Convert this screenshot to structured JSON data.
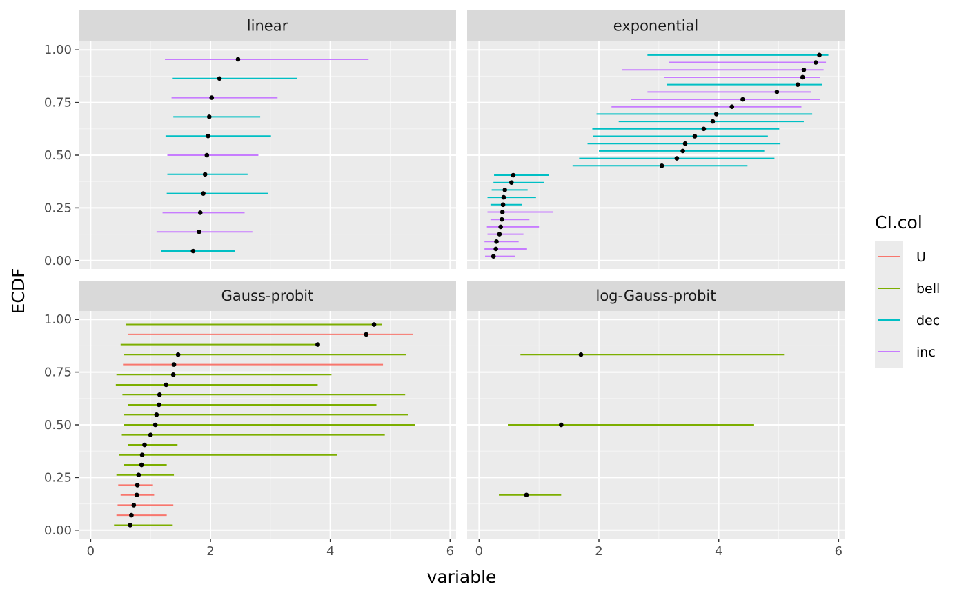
{
  "chart_data": {
    "type": "faceted-interval",
    "xlabel": "variable",
    "ylabel": "ECDF",
    "xlim": [
      -0.2,
      6.1
    ],
    "ylim": [
      -0.04,
      1.04
    ],
    "xticks": [
      0,
      2,
      4,
      6
    ],
    "yticks": [
      0,
      0.25,
      0.5,
      0.75,
      1
    ],
    "ytick_labels": [
      "0.00",
      "0.25",
      "0.50",
      "0.75",
      "1.00"
    ],
    "grid": true,
    "legend": {
      "title": "CI.col",
      "placement": "right",
      "entries": [
        {
          "key": "U",
          "label": "U",
          "color": "#F8766D"
        },
        {
          "key": "bell",
          "label": "bell",
          "color": "#7CAE00"
        },
        {
          "key": "dec",
          "label": "dec",
          "color": "#00BFC4"
        },
        {
          "key": "inc",
          "label": "inc",
          "color": "#C77CFF"
        }
      ]
    },
    "point_color": "#000000",
    "panels": [
      {
        "title": "linear",
        "intervals": [
          {
            "y": 0.045,
            "x": 1.71,
            "lo": 1.18,
            "hi": 2.41,
            "col": "dec"
          },
          {
            "y": 0.136,
            "x": 1.81,
            "lo": 1.1,
            "hi": 2.7,
            "col": "inc"
          },
          {
            "y": 0.227,
            "x": 1.83,
            "lo": 1.2,
            "hi": 2.57,
            "col": "inc"
          },
          {
            "y": 0.318,
            "x": 1.88,
            "lo": 1.27,
            "hi": 2.96,
            "col": "dec"
          },
          {
            "y": 0.409,
            "x": 1.91,
            "lo": 1.28,
            "hi": 2.62,
            "col": "dec"
          },
          {
            "y": 0.5,
            "x": 1.94,
            "lo": 1.28,
            "hi": 2.8,
            "col": "inc"
          },
          {
            "y": 0.591,
            "x": 1.96,
            "lo": 1.25,
            "hi": 3.01,
            "col": "dec"
          },
          {
            "y": 0.682,
            "x": 1.98,
            "lo": 1.38,
            "hi": 2.83,
            "col": "dec"
          },
          {
            "y": 0.773,
            "x": 2.02,
            "lo": 1.35,
            "hi": 3.12,
            "col": "inc"
          },
          {
            "y": 0.864,
            "x": 2.15,
            "lo": 1.37,
            "hi": 3.45,
            "col": "dec"
          },
          {
            "y": 0.955,
            "x": 2.46,
            "lo": 1.24,
            "hi": 4.64,
            "col": "inc"
          }
        ]
      },
      {
        "title": "exponential",
        "intervals": [
          {
            "y": 0.02,
            "x": 0.24,
            "lo": 0.1,
            "hi": 0.6,
            "col": "inc"
          },
          {
            "y": 0.055,
            "x": 0.28,
            "lo": 0.09,
            "hi": 0.8,
            "col": "inc"
          },
          {
            "y": 0.09,
            "x": 0.29,
            "lo": 0.09,
            "hi": 0.66,
            "col": "inc"
          },
          {
            "y": 0.125,
            "x": 0.34,
            "lo": 0.14,
            "hi": 0.74,
            "col": "inc"
          },
          {
            "y": 0.16,
            "x": 0.36,
            "lo": 0.13,
            "hi": 1.0,
            "col": "inc"
          },
          {
            "y": 0.195,
            "x": 0.38,
            "lo": 0.19,
            "hi": 0.84,
            "col": "inc"
          },
          {
            "y": 0.23,
            "x": 0.39,
            "lo": 0.14,
            "hi": 1.24,
            "col": "inc"
          },
          {
            "y": 0.265,
            "x": 0.4,
            "lo": 0.19,
            "hi": 0.72,
            "col": "dec"
          },
          {
            "y": 0.3,
            "x": 0.41,
            "lo": 0.14,
            "hi": 0.95,
            "col": "dec"
          },
          {
            "y": 0.335,
            "x": 0.43,
            "lo": 0.21,
            "hi": 0.81,
            "col": "dec"
          },
          {
            "y": 0.37,
            "x": 0.54,
            "lo": 0.24,
            "hi": 1.08,
            "col": "dec"
          },
          {
            "y": 0.405,
            "x": 0.57,
            "lo": 0.25,
            "hi": 1.17,
            "col": "dec"
          },
          {
            "y": 0.45,
            "x": 3.05,
            "lo": 1.56,
            "hi": 4.48,
            "col": "dec"
          },
          {
            "y": 0.485,
            "x": 3.3,
            "lo": 1.67,
            "hi": 4.93,
            "col": "dec"
          },
          {
            "y": 0.52,
            "x": 3.4,
            "lo": 2.0,
            "hi": 4.76,
            "col": "dec"
          },
          {
            "y": 0.555,
            "x": 3.44,
            "lo": 1.81,
            "hi": 5.03,
            "col": "dec"
          },
          {
            "y": 0.59,
            "x": 3.6,
            "lo": 1.9,
            "hi": 4.82,
            "col": "dec"
          },
          {
            "y": 0.625,
            "x": 3.75,
            "lo": 1.89,
            "hi": 5.01,
            "col": "dec"
          },
          {
            "y": 0.66,
            "x": 3.9,
            "lo": 2.33,
            "hi": 5.42,
            "col": "dec"
          },
          {
            "y": 0.695,
            "x": 3.96,
            "lo": 1.96,
            "hi": 5.56,
            "col": "dec"
          },
          {
            "y": 0.73,
            "x": 4.22,
            "lo": 2.21,
            "hi": 5.38,
            "col": "inc"
          },
          {
            "y": 0.765,
            "x": 4.4,
            "lo": 2.54,
            "hi": 5.69,
            "col": "inc"
          },
          {
            "y": 0.8,
            "x": 4.97,
            "lo": 2.81,
            "hi": 5.54,
            "col": "inc"
          },
          {
            "y": 0.835,
            "x": 5.32,
            "lo": 3.13,
            "hi": 5.73,
            "col": "dec"
          },
          {
            "y": 0.87,
            "x": 5.4,
            "lo": 3.09,
            "hi": 5.69,
            "col": "inc"
          },
          {
            "y": 0.905,
            "x": 5.42,
            "lo": 2.39,
            "hi": 5.75,
            "col": "inc"
          },
          {
            "y": 0.94,
            "x": 5.62,
            "lo": 3.17,
            "hi": 5.79,
            "col": "inc"
          },
          {
            "y": 0.975,
            "x": 5.68,
            "lo": 2.81,
            "hi": 5.83,
            "col": "dec"
          }
        ]
      },
      {
        "title": "Gauss-probit",
        "intervals": [
          {
            "y": 0.024,
            "x": 0.66,
            "lo": 0.39,
            "hi": 1.37,
            "col": "bell"
          },
          {
            "y": 0.071,
            "x": 0.68,
            "lo": 0.43,
            "hi": 1.27,
            "col": "U"
          },
          {
            "y": 0.119,
            "x": 0.72,
            "lo": 0.45,
            "hi": 1.38,
            "col": "U"
          },
          {
            "y": 0.167,
            "x": 0.77,
            "lo": 0.5,
            "hi": 1.06,
            "col": "U"
          },
          {
            "y": 0.214,
            "x": 0.78,
            "lo": 0.46,
            "hi": 1.04,
            "col": "U"
          },
          {
            "y": 0.262,
            "x": 0.8,
            "lo": 0.43,
            "hi": 1.39,
            "col": "bell"
          },
          {
            "y": 0.31,
            "x": 0.85,
            "lo": 0.56,
            "hi": 1.27,
            "col": "bell"
          },
          {
            "y": 0.357,
            "x": 0.86,
            "lo": 0.47,
            "hi": 4.11,
            "col": "bell"
          },
          {
            "y": 0.405,
            "x": 0.9,
            "lo": 0.62,
            "hi": 1.45,
            "col": "bell"
          },
          {
            "y": 0.452,
            "x": 1.0,
            "lo": 0.52,
            "hi": 4.91,
            "col": "bell"
          },
          {
            "y": 0.5,
            "x": 1.08,
            "lo": 0.56,
            "hi": 5.42,
            "col": "bell"
          },
          {
            "y": 0.548,
            "x": 1.1,
            "lo": 0.55,
            "hi": 5.3,
            "col": "bell"
          },
          {
            "y": 0.595,
            "x": 1.14,
            "lo": 0.62,
            "hi": 4.77,
            "col": "bell"
          },
          {
            "y": 0.643,
            "x": 1.15,
            "lo": 0.53,
            "hi": 5.25,
            "col": "bell"
          },
          {
            "y": 0.69,
            "x": 1.26,
            "lo": 0.42,
            "hi": 3.79,
            "col": "bell"
          },
          {
            "y": 0.738,
            "x": 1.38,
            "lo": 0.43,
            "hi": 4.02,
            "col": "bell"
          },
          {
            "y": 0.786,
            "x": 1.39,
            "lo": 0.54,
            "hi": 4.88,
            "col": "U"
          },
          {
            "y": 0.833,
            "x": 1.46,
            "lo": 0.56,
            "hi": 5.26,
            "col": "bell"
          },
          {
            "y": 0.881,
            "x": 3.79,
            "lo": 0.5,
            "hi": 3.83,
            "col": "bell"
          },
          {
            "y": 0.929,
            "x": 4.6,
            "lo": 0.62,
            "hi": 5.38,
            "col": "U"
          },
          {
            "y": 0.976,
            "x": 4.73,
            "lo": 0.59,
            "hi": 4.86,
            "col": "bell"
          }
        ]
      },
      {
        "title": "log-Gauss-probit",
        "intervals": [
          {
            "y": 0.167,
            "x": 0.79,
            "lo": 0.33,
            "hi": 1.37,
            "col": "bell"
          },
          {
            "y": 0.5,
            "x": 1.37,
            "lo": 0.48,
            "hi": 4.59,
            "col": "bell"
          },
          {
            "y": 0.833,
            "x": 1.7,
            "lo": 0.69,
            "hi": 5.09,
            "col": "bell"
          }
        ]
      }
    ]
  }
}
